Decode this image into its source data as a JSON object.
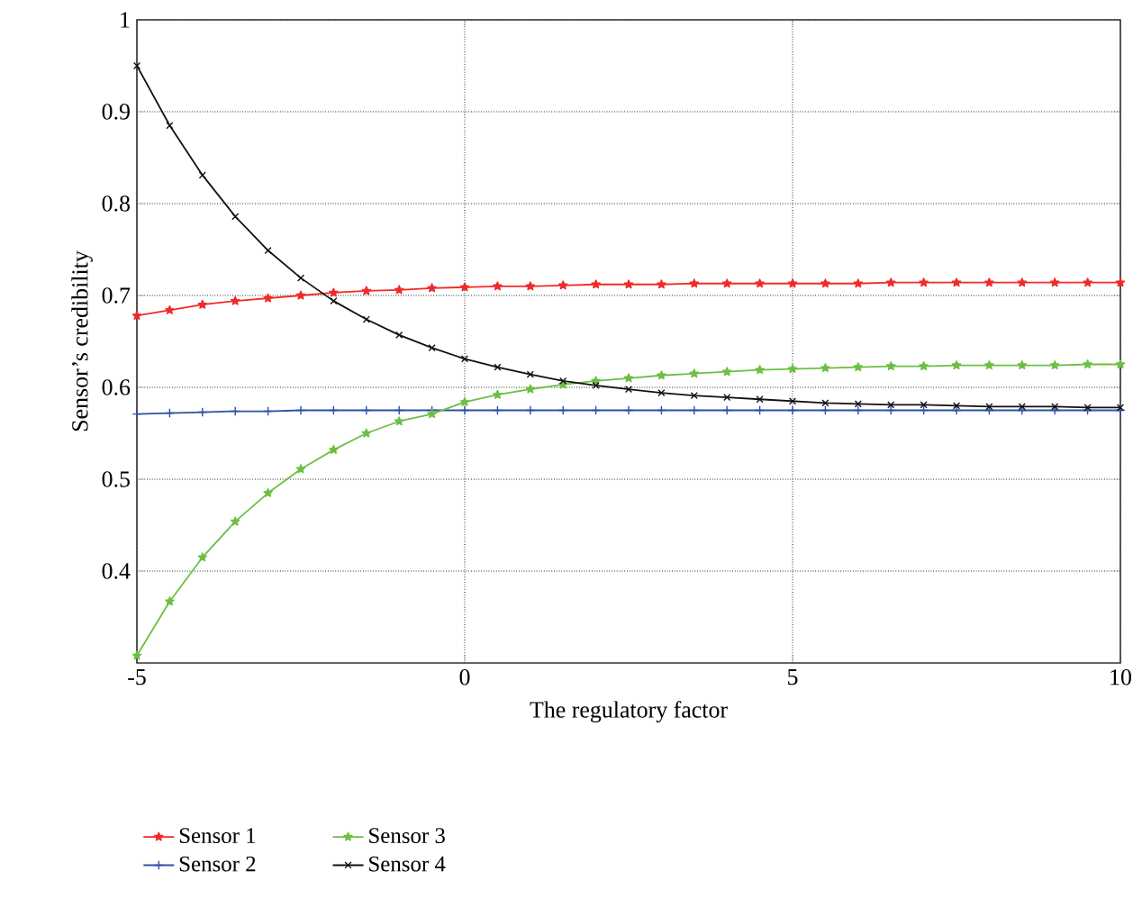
{
  "chart_data": {
    "type": "line",
    "xlabel": "The regulatory factor",
    "ylabel": "Sensor’s credibility",
    "x": [
      -5,
      -4.5,
      -4,
      -3.5,
      -3,
      -2.5,
      -2,
      -1.5,
      -1,
      -0.5,
      0,
      0.5,
      1,
      1.5,
      2,
      2.5,
      3,
      3.5,
      4,
      4.5,
      5,
      5.5,
      6,
      6.5,
      7,
      7.5,
      8,
      8.5,
      9,
      9.5,
      10
    ],
    "xlim": [
      -5,
      10
    ],
    "xticks": [
      -5,
      0,
      5,
      10
    ],
    "ylim": [
      0.3,
      1
    ],
    "yticks": [
      0.4,
      0.5,
      0.6,
      0.7,
      0.8,
      0.9,
      1
    ],
    "grid": true,
    "legend": "bottom",
    "line_style": "solid",
    "series": [
      {
        "name": "Sensor 1",
        "color": "#f02a2a",
        "marker": "star",
        "values": [
          0.678,
          0.684,
          0.69,
          0.694,
          0.697,
          0.7,
          0.703,
          0.705,
          0.706,
          0.708,
          0.709,
          0.71,
          0.71,
          0.711,
          0.712,
          0.712,
          0.712,
          0.713,
          0.713,
          0.713,
          0.713,
          0.713,
          0.713,
          0.714,
          0.714,
          0.714,
          0.714,
          0.714,
          0.714,
          0.714,
          0.714
        ]
      },
      {
        "name": "Sensor 2",
        "color": "#2f4fa6",
        "marker": "plus",
        "values": [
          0.571,
          0.572,
          0.573,
          0.574,
          0.574,
          0.575,
          0.575,
          0.575,
          0.575,
          0.575,
          0.575,
          0.575,
          0.575,
          0.575,
          0.575,
          0.575,
          0.575,
          0.575,
          0.575,
          0.575,
          0.575,
          0.575,
          0.575,
          0.575,
          0.575,
          0.575,
          0.575,
          0.575,
          0.575,
          0.575,
          0.575
        ]
      },
      {
        "name": "Sensor 3",
        "color": "#6cbf42",
        "marker": "star",
        "values": [
          0.308,
          0.367,
          0.415,
          0.454,
          0.485,
          0.511,
          0.532,
          0.55,
          0.563,
          0.571,
          0.584,
          0.592,
          0.598,
          0.603,
          0.607,
          0.61,
          0.613,
          0.615,
          0.617,
          0.619,
          0.62,
          0.621,
          0.622,
          0.623,
          0.623,
          0.624,
          0.624,
          0.624,
          0.624,
          0.625,
          0.625
        ]
      },
      {
        "name": "Sensor 4",
        "color": "#111111",
        "marker": "cross",
        "values": [
          0.95,
          0.885,
          0.831,
          0.786,
          0.749,
          0.719,
          0.694,
          0.674,
          0.657,
          0.643,
          0.631,
          0.622,
          0.614,
          0.607,
          0.602,
          0.598,
          0.594,
          0.591,
          0.589,
          0.587,
          0.585,
          0.583,
          0.582,
          0.581,
          0.581,
          0.58,
          0.579,
          0.579,
          0.579,
          0.578,
          0.578
        ]
      }
    ]
  }
}
